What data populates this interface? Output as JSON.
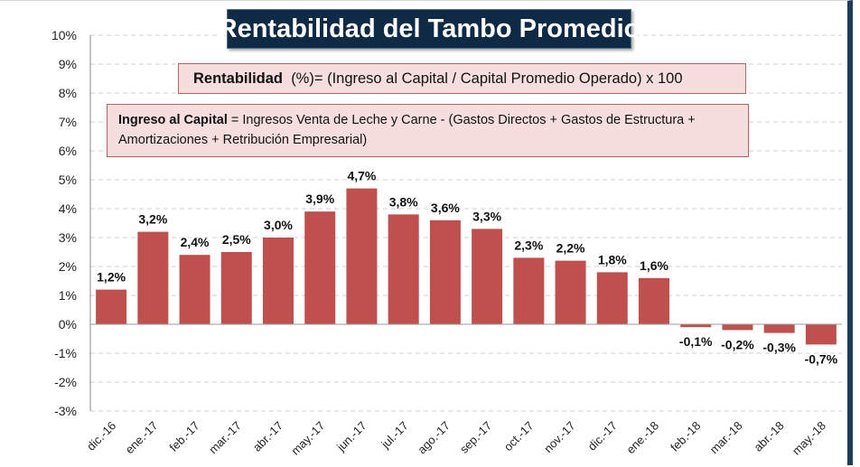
{
  "header": {
    "title": "Rentabilidad del Tambo Promedio"
  },
  "formula": {
    "label": "Rentabilidad",
    "text": "(%)= (Ingreso al Capital / Capital Promedio Operado) x 100"
  },
  "definition": {
    "label": "Ingreso al Capital",
    "line1": "= Ingresos Venta de Leche y Carne  -  (Gastos Directos  +  Gastos de Estructura  +",
    "line2": "Amortizaciones  +  Retribución Empresarial)"
  },
  "colors": {
    "bar": "#c0504d",
    "title_bg": "#0f2a45",
    "box_bg": "#f6dede"
  },
  "chart_data": {
    "type": "bar",
    "title": "Rentabilidad del Tambo Promedio",
    "xlabel": "",
    "ylabel": "",
    "ylim": [
      -3,
      10
    ],
    "yticks": [
      10,
      9,
      8,
      7,
      6,
      5,
      4,
      3,
      2,
      1,
      0,
      -1,
      -2,
      -3
    ],
    "ytick_labels": [
      "10%",
      "9%",
      "8%",
      "7%",
      "6%",
      "5%",
      "4%",
      "3%",
      "2%",
      "1%",
      "0%",
      "-1%",
      "-2%",
      "-3%"
    ],
    "grid": true,
    "categories": [
      "dic.-16",
      "ene.-17",
      "feb.-17",
      "mar.-17",
      "abr.-17",
      "may.-17",
      "jun.-17",
      "jul.-17",
      "ago.-17",
      "sep.-17",
      "oct.-17",
      "nov.-17",
      "dic.-17",
      "ene.-18",
      "feb.-18",
      "mar.-18",
      "abr.-18",
      "may.-18"
    ],
    "values": [
      1.2,
      3.2,
      2.4,
      2.5,
      3.0,
      3.9,
      4.7,
      3.8,
      3.6,
      3.3,
      2.3,
      2.2,
      1.8,
      1.6,
      -0.1,
      -0.2,
      -0.3,
      -0.7
    ],
    "data_labels": [
      "1,2%",
      "3,2%",
      "2,4%",
      "2,5%",
      "3,0%",
      "3,9%",
      "4,7%",
      "3,8%",
      "3,6%",
      "3,3%",
      "2,3%",
      "2,2%",
      "1,8%",
      "1,6%",
      "-0,1%",
      "-0,2%",
      "-0,3%",
      "-0,7%"
    ]
  }
}
